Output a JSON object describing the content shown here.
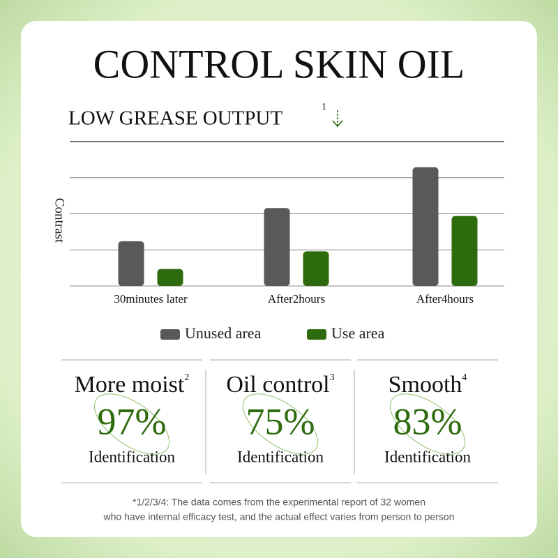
{
  "chart_data": {
    "type": "bar",
    "title": "CONTROL SKIN OIL",
    "subtitle": "LOW GREASE OUTPUT",
    "subtitle_note": "1",
    "y_label": "Contrast",
    "categories": [
      "30minutes later",
      "After2hours",
      "After4hours"
    ],
    "series": [
      {
        "name": "Unused area",
        "color": "#595959",
        "values": [
          1.24,
          2.16,
          3.29
        ]
      },
      {
        "name": "Use area",
        "color": "#2e6b0e",
        "values": [
          0.47,
          0.96,
          1.94
        ]
      }
    ],
    "ylim": [
      0,
      4
    ],
    "yticks": [
      0,
      1,
      2,
      3
    ],
    "grid": true
  },
  "stats": [
    {
      "label": "More moist",
      "note": "2",
      "value": "97%",
      "caption": "Identification"
    },
    {
      "label": "Oil control",
      "note": "3",
      "value": "75%",
      "caption": "Identification"
    },
    {
      "label": "Smooth",
      "note": "4",
      "value": "83%",
      "caption": "Identification"
    }
  ],
  "footnote": [
    "*1/2/3/4:  The data comes from the experimental report of 32 women",
    "who have internal efficacy test, and the actual effect varies from person to person"
  ]
}
